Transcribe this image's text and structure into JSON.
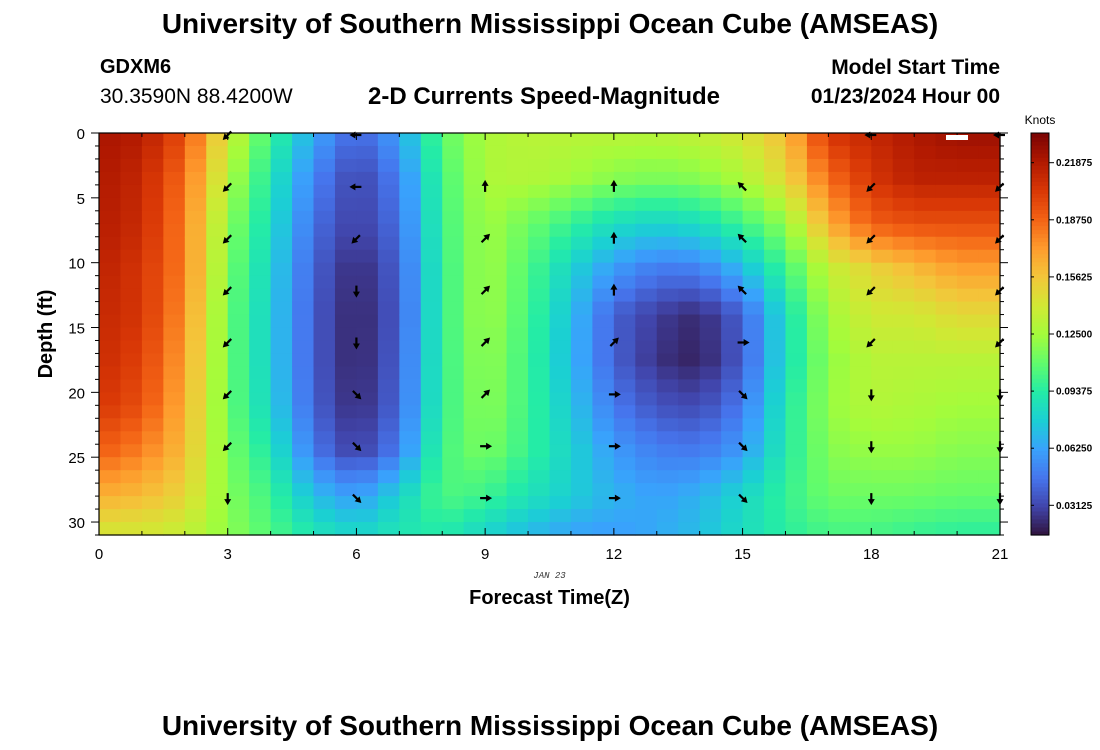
{
  "header": {
    "title": "University of Southern Mississippi Ocean Cube (AMSEAS)",
    "station_id": "GDXM6",
    "station_coords": "30.3590N  88.4200W",
    "plot_title": "2-D Currents Speed-Magnitude",
    "model_start_label": "Model Start Time",
    "model_start_value": "01/23/2024 Hour 00"
  },
  "footer": {
    "title": "University of Southern Mississippi Ocean Cube (AMSEAS)"
  },
  "chart_data": {
    "type": "heatmap",
    "title": "2-D Currents Speed-Magnitude",
    "xlabel": "Forecast Time(Z)",
    "ylabel": "Depth (ft)",
    "date_label": "JAN 23",
    "xlim": [
      0,
      21
    ],
    "ylim": [
      31,
      0
    ],
    "x_ticks": [
      0,
      3,
      6,
      9,
      12,
      15,
      18,
      21
    ],
    "y_ticks": [
      0,
      5,
      10,
      15,
      20,
      25,
      30
    ],
    "colorbar": {
      "label": "Knots",
      "range": [
        0.015,
        0.235
      ],
      "ticks": [
        0.03125,
        0.0625,
        0.09375,
        0.125,
        0.15625,
        0.1875,
        0.21875
      ],
      "tick_labels": [
        "0.03125",
        "0.06250",
        "0.09375",
        "0.12500",
        "0.15625",
        "0.18750",
        "0.21875"
      ],
      "colormap": [
        "#30123b",
        "#4145ab",
        "#4675ed",
        "#39a2fc",
        "#1bcfd4",
        "#24eca6",
        "#61fc6c",
        "#a4fc3b",
        "#d1e834",
        "#f3c63a",
        "#fe9b2d",
        "#f36315",
        "#d93806",
        "#b11901",
        "#7a0403"
      ]
    },
    "speed_knots": [
      [
        0.222,
        0.218,
        0.195,
        0.14,
        0.1,
        0.065,
        0.04,
        0.062,
        0.108,
        0.128,
        0.132,
        0.132,
        0.132,
        0.132,
        0.135,
        0.142,
        0.16,
        0.205,
        0.212,
        0.22,
        0.225
      ],
      [
        0.22,
        0.212,
        0.185,
        0.13,
        0.09,
        0.052,
        0.03,
        0.05,
        0.102,
        0.128,
        0.13,
        0.125,
        0.118,
        0.115,
        0.118,
        0.128,
        0.148,
        0.185,
        0.205,
        0.215,
        0.215
      ],
      [
        0.218,
        0.21,
        0.18,
        0.12,
        0.085,
        0.045,
        0.028,
        0.045,
        0.1,
        0.125,
        0.112,
        0.098,
        0.085,
        0.08,
        0.085,
        0.1,
        0.12,
        0.165,
        0.19,
        0.195,
        0.195
      ],
      [
        0.215,
        0.205,
        0.18,
        0.115,
        0.08,
        0.04,
        0.022,
        0.04,
        0.098,
        0.125,
        0.105,
        0.08,
        0.06,
        0.048,
        0.05,
        0.07,
        0.1,
        0.135,
        0.15,
        0.16,
        0.17
      ],
      [
        0.212,
        0.205,
        0.175,
        0.112,
        0.078,
        0.038,
        0.02,
        0.038,
        0.098,
        0.125,
        0.102,
        0.072,
        0.04,
        0.028,
        0.022,
        0.04,
        0.085,
        0.125,
        0.14,
        0.14,
        0.148
      ],
      [
        0.21,
        0.2,
        0.17,
        0.112,
        0.078,
        0.038,
        0.02,
        0.04,
        0.098,
        0.122,
        0.1,
        0.07,
        0.04,
        0.025,
        0.02,
        0.038,
        0.085,
        0.12,
        0.132,
        0.132,
        0.132
      ],
      [
        0.205,
        0.195,
        0.165,
        0.112,
        0.08,
        0.04,
        0.022,
        0.042,
        0.098,
        0.12,
        0.1,
        0.075,
        0.048,
        0.035,
        0.032,
        0.048,
        0.09,
        0.122,
        0.13,
        0.128,
        0.125
      ],
      [
        0.19,
        0.18,
        0.16,
        0.115,
        0.09,
        0.048,
        0.028,
        0.05,
        0.102,
        0.115,
        0.098,
        0.08,
        0.06,
        0.05,
        0.048,
        0.06,
        0.092,
        0.118,
        0.122,
        0.122,
        0.118
      ],
      [
        0.165,
        0.16,
        0.15,
        0.118,
        0.1,
        0.072,
        0.06,
        0.08,
        0.105,
        0.1,
        0.088,
        0.078,
        0.068,
        0.062,
        0.068,
        0.082,
        0.098,
        0.112,
        0.112,
        0.112,
        0.11
      ],
      [
        0.14,
        0.14,
        0.135,
        0.12,
        0.105,
        0.09,
        0.082,
        0.09,
        0.092,
        0.08,
        0.07,
        0.062,
        0.06,
        0.065,
        0.072,
        0.085,
        0.095,
        0.102,
        0.102,
        0.098,
        0.095
      ]
    ],
    "speed_depths": [
      0,
      3.5,
      7,
      10.5,
      14,
      17.5,
      21,
      24.5,
      28,
      31
    ],
    "arrows": [
      {
        "t": 3,
        "depths": [
          0,
          4,
          8,
          12,
          16,
          20,
          24,
          28
        ],
        "dir": [
          "sw",
          "sw",
          "sw",
          "sw",
          "sw",
          "sw",
          "sw",
          "s"
        ]
      },
      {
        "t": 6,
        "depths": [
          0,
          4,
          8,
          12,
          16,
          20,
          24,
          28
        ],
        "dir": [
          "w",
          "w",
          "sw",
          "s",
          "s",
          "se",
          "se",
          "se"
        ]
      },
      {
        "t": 9,
        "depths": [
          4,
          8,
          12,
          16,
          20,
          24,
          28
        ],
        "dir": [
          "n",
          "ne",
          "ne",
          "ne",
          "ne",
          "e",
          "e"
        ]
      },
      {
        "t": 12,
        "depths": [
          4,
          8,
          12,
          16,
          20,
          24,
          28
        ],
        "dir": [
          "n",
          "n",
          "n",
          "ne",
          "e",
          "e",
          "e"
        ]
      },
      {
        "t": 15,
        "depths": [
          4,
          8,
          12,
          16,
          20,
          24,
          28
        ],
        "dir": [
          "nw",
          "nw",
          "nw",
          "e",
          "se",
          "se",
          "se"
        ]
      },
      {
        "t": 18,
        "depths": [
          0,
          4,
          8,
          12,
          16,
          20,
          24,
          28
        ],
        "dir": [
          "w",
          "sw",
          "sw",
          "sw",
          "sw",
          "s",
          "s",
          "s"
        ]
      },
      {
        "t": 21,
        "depths": [
          0,
          4,
          8,
          12,
          16,
          20,
          24,
          28
        ],
        "dir": [
          "w",
          "sw",
          "sw",
          "sw",
          "sw",
          "s",
          "s",
          "s"
        ]
      }
    ]
  }
}
